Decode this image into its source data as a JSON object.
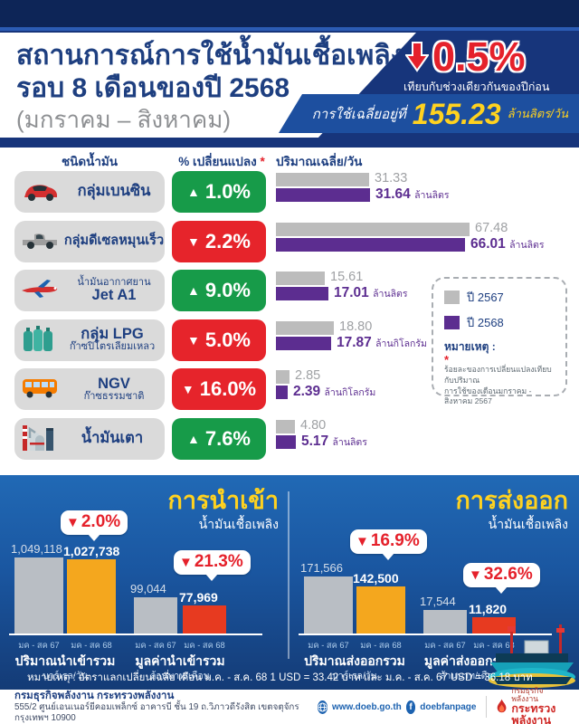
{
  "colors": {
    "navy": "#17357b",
    "dark_navy": "#0d2557",
    "accent_blue": "#2b5cb4",
    "banner_blue": "#1d4f9f",
    "red": "#e5212b",
    "green": "#179b49",
    "yellow": "#ffd21f",
    "purple_2568": "#5c2d90",
    "gray_2567": "#bcbcbc",
    "orange_bar": "#f4a71e",
    "redorange_bar": "#e73a20",
    "graybar_bottom": "#b9bec4"
  },
  "header": {
    "title_line1": "สถานการณ์การใช้น้ำมันเชื้อเพลิง",
    "title_line2": "รอบ 8 เดือนของปี 2568",
    "title_line3": "(มกราคม – สิงหาคม)",
    "change_value": "0.5%",
    "change_caption": "เทียบกับช่วงเดียวกันของปีก่อน",
    "avg_prefix": "การใช้เฉลี่ยอยู่ที่",
    "avg_value": "155.23",
    "avg_unit": "ล้านลิตร/วัน"
  },
  "table": {
    "col_fuel": "ชนิดน้ำมัน",
    "col_change": "% เปลี่ยนแปลง",
    "col_change_mark": "*",
    "col_qty": "ปริมาณเฉลี่ย/วัน",
    "rows": [
      {
        "icon": "car-icon",
        "label": "กลุ่มเบนซิน",
        "label2": "",
        "emphasis": "single",
        "dir": "up",
        "change": "1.0%",
        "y67": "31.33",
        "y68": "31.64",
        "unit": "ล้านลิตร"
      },
      {
        "icon": "pickup-icon",
        "label": "กลุ่มดีเซลหมุนเร็ว",
        "label2": "",
        "emphasis": "single-mid",
        "dir": "down",
        "change": "2.2%",
        "y67": "67.48",
        "y68": "66.01",
        "unit": "ล้านลิตร"
      },
      {
        "icon": "plane-icon",
        "label": "น้ำมันอากาศยาน",
        "label2": "Jet A1",
        "emphasis": "bottom",
        "dir": "up",
        "change": "9.0%",
        "y67": "15.61",
        "y68": "17.01",
        "unit": "ล้านลิตร"
      },
      {
        "icon": "lpg-icon",
        "label": "กลุ่ม LPG",
        "label2": "ก๊าซปิโตรเลียมเหลว",
        "emphasis": "top",
        "dir": "down",
        "change": "5.0%",
        "y67": "18.80",
        "y68": "17.87",
        "unit": "ล้านกิโลกรัม"
      },
      {
        "icon": "bus-icon",
        "label": "NGV",
        "label2": "ก๊าซธรรมชาติ",
        "emphasis": "top",
        "dir": "down",
        "change": "16.0%",
        "y67": "2.85",
        "y68": "2.39",
        "unit": "ล้านกิโลกรัม"
      },
      {
        "icon": "refinery-icon",
        "label": "น้ำมันเตา",
        "label2": "",
        "emphasis": "single",
        "dir": "up",
        "change": "7.6%",
        "y67": "4.80",
        "y68": "5.17",
        "unit": "ล้านลิตร"
      }
    ]
  },
  "legend": {
    "item_2567": "ปี 2567",
    "item_2568": "ปี 2568",
    "note_title": "หมายเหตุ :",
    "note_mark": "*",
    "note_line1": "ร้อยละของการเปลี่ยนแปลงเทียบกับปริมาณ",
    "note_line2": "การใช้ของเดือนมกราคม - สิงหาคม 2567"
  },
  "chart_data": [
    {
      "type": "bar",
      "title": "ปริมาณเฉลี่ย/วัน",
      "categories": [
        "กลุ่มเบนซิน",
        "กลุ่มดีเซลหมุนเร็ว",
        "น้ำมันอากาศยาน Jet A1",
        "กลุ่ม LPG ก๊าซปิโตรเลียมเหลว",
        "NGV ก๊าซธรรมชาติ",
        "น้ำมันเตา"
      ],
      "series": [
        {
          "name": "ปี 2567",
          "values": [
            31.33,
            67.48,
            15.61,
            18.8,
            2.85,
            4.8
          ]
        },
        {
          "name": "ปี 2568",
          "values": [
            31.64,
            66.01,
            17.01,
            17.87,
            2.39,
            5.17
          ]
        }
      ],
      "units": [
        "ล้านลิตร",
        "ล้านลิตร",
        "ล้านลิตร",
        "ล้านกิโลกรัม",
        "ล้านกิโลกรัม",
        "ล้านลิตร"
      ],
      "pct_change": [
        1.0,
        -2.2,
        9.0,
        -5.0,
        -16.0,
        7.6
      ],
      "legend_position": "right",
      "grid": false
    },
    {
      "type": "bar",
      "title": "การนำเข้า",
      "subtitle": "น้ำมันเชื้อเพลิง",
      "groups": [
        {
          "caption": "ปริมาณนำเข้ารวม",
          "unit": "บาร์เรล/วัน",
          "ticks": [
            "มค - สค 67",
            "มค - สค 68"
          ],
          "values": [
            1049118,
            1027738
          ],
          "labels": [
            "1,049,118",
            "1,027,738"
          ],
          "change": "2.0%"
        },
        {
          "caption": "มูลค่านำเข้ารวม",
          "unit": "ล้านบาท/เดือน",
          "ticks": [
            "มค - สค 67",
            "มค - สค 68"
          ],
          "values": [
            99044,
            77969
          ],
          "labels": [
            "99,044",
            "77,969"
          ],
          "change": "21.3%"
        }
      ]
    },
    {
      "type": "bar",
      "title": "การส่งออก",
      "subtitle": "น้ำมันเชื้อเพลิง",
      "groups": [
        {
          "caption": "ปริมาณส่งออกรวม",
          "unit": "บาร์เรล/วัน",
          "ticks": [
            "มค - สค 67",
            "มค - สค 68"
          ],
          "values": [
            171566,
            142500
          ],
          "labels": [
            "171,566",
            "142,500"
          ],
          "change": "16.9%"
        },
        {
          "caption": "มูลค่าส่งออกรวม",
          "unit": "ล้านบาท/เดือน",
          "ticks": [
            "มค - สค 67",
            "มค - สค 68"
          ],
          "values": [
            17544,
            11820
          ],
          "labels": [
            "17,544",
            "11,820"
          ],
          "change": "32.6%"
        }
      ]
    }
  ],
  "bottom_note": "หมายเหตุ : อัตราแลกเปลี่ยนเฉลี่ย เดือน ม.ค. - ส.ค. 68 1 USD = 33.42 บาท และ ม.ค. - ส.ค. 67 USD = 36.18 บาท",
  "footer": {
    "org": "กรมธุรกิจพลังงาน กระทรวงพลังงาน",
    "address": "555/2 ศูนย์เอนเนอร์ยีคอมเพล็กซ์ อาคารบี ชั้น 19 ถ.วิภาวดีรังสิต เขตจตุจักร กรุงเทพฯ 10900",
    "website": "www.doeb.go.th",
    "facebook": "doebfanpage",
    "facebook_glyph": "f",
    "logo_line1": "กรมธุรกิจพลังงาน",
    "logo_line2": "กระทรวงพลังงาน"
  }
}
